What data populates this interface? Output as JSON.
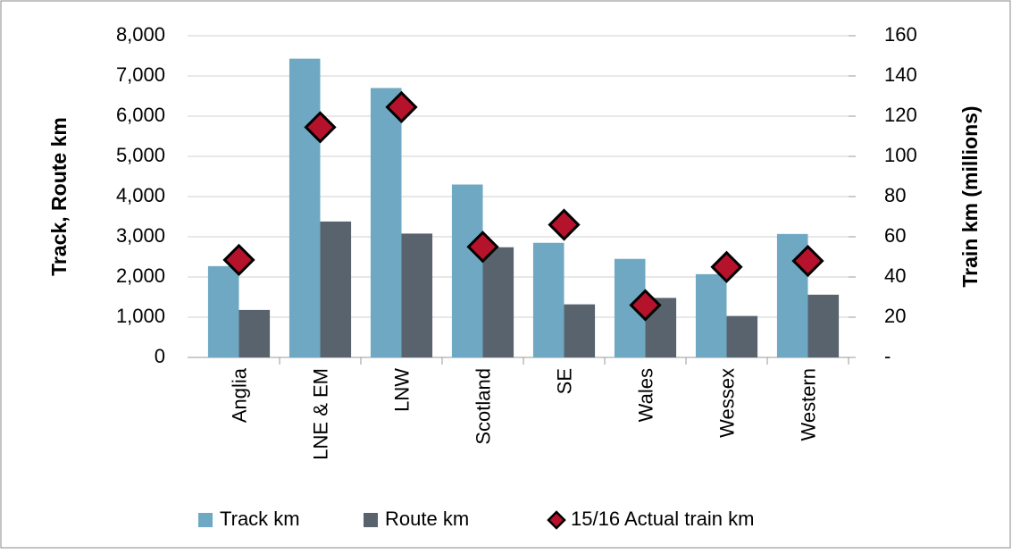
{
  "chart_data": {
    "type": "bar",
    "categories": [
      "Anglia",
      "LNE & EM",
      "LNW",
      "Scotland",
      "SE",
      "Wales",
      "Wessex",
      "Western"
    ],
    "series": [
      {
        "name": "Track km",
        "type": "bar",
        "color": "#6fa8c2",
        "values": [
          2270,
          7430,
          6700,
          4300,
          2850,
          2450,
          2070,
          3070
        ]
      },
      {
        "name": "Route km",
        "type": "bar",
        "color": "#59636e",
        "values": [
          1180,
          3380,
          3080,
          2740,
          1320,
          1480,
          1030,
          1560
        ]
      },
      {
        "name": "15/16 Actual train km",
        "type": "scatter",
        "marker": "diamond",
        "color": "#b5122c",
        "axis": "y2",
        "values": [
          48.5,
          114.5,
          124.5,
          55,
          66,
          26,
          45,
          48
        ]
      }
    ],
    "ylabel": "Track, Route km",
    "y2label": "Train km (millions)",
    "ylim": [
      0,
      8000
    ],
    "yticks": [
      0,
      {
        "value": 1000,
        "label": "1,000"
      },
      {
        "value": 2000,
        "label": "2,000"
      },
      {
        "value": 3000,
        "label": "3,000"
      },
      {
        "value": 4000,
        "label": "4,000"
      },
      {
        "value": 5000,
        "label": "5,000"
      },
      {
        "value": 6000,
        "label": "6,000"
      },
      {
        "value": 7000,
        "label": "7,000"
      },
      {
        "value": 8000,
        "label": "8,000"
      }
    ],
    "y2lim": [
      0,
      160
    ],
    "y2ticks": [
      {
        "value": 0,
        "label": "-"
      },
      20,
      40,
      60,
      80,
      100,
      120,
      140,
      160
    ],
    "grid": true,
    "legend": "bottom"
  }
}
